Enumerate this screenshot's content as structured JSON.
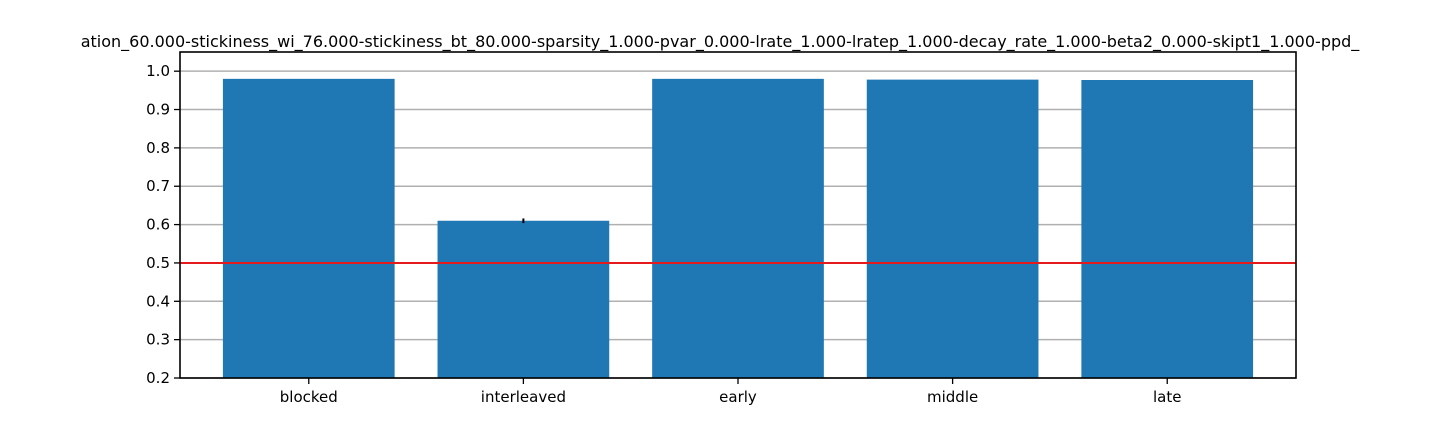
{
  "chart_data": {
    "type": "bar",
    "title": "ation_60.000-stickiness_wi_76.000-stickiness_bt_80.000-sparsity_1.000-pvar_0.000-lrate_1.000-lratep_1.000-decay_rate_1.000-beta2_0.000-skipt1_1.000-ppd_",
    "xlabel": "",
    "ylabel": "",
    "categories": [
      "blocked",
      "interleaved",
      "early",
      "middle",
      "late"
    ],
    "values": [
      0.98,
      0.61,
      0.98,
      0.978,
      0.977
    ],
    "errors": [
      0.0,
      0.006,
      0.0,
      0.0,
      0.0
    ],
    "ylim": [
      0.2,
      1.05
    ],
    "yticks": [
      0.2,
      0.3,
      0.4,
      0.5,
      0.6,
      0.7,
      0.8,
      0.9,
      1.0
    ],
    "ytick_labels": [
      "0.2",
      "0.3",
      "0.4",
      "0.5",
      "0.6",
      "0.7",
      "0.8",
      "0.9",
      "1.0"
    ],
    "reference_line": 0.5,
    "grid": "horizontal",
    "colors": {
      "bar": "#1f77b4",
      "reference_line": "#e41a1c",
      "grid": "#b0b0b0",
      "error": "#000000"
    }
  }
}
